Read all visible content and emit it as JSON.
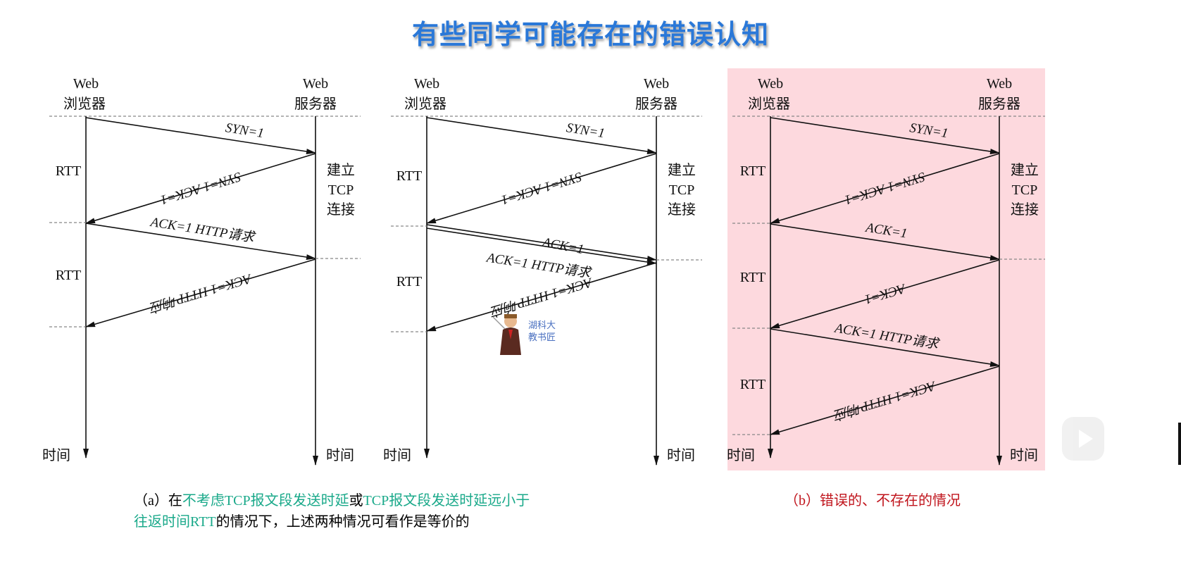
{
  "title": "有些同学可能存在的错误认知",
  "client_label": [
    "Web",
    "浏览器"
  ],
  "server_label": [
    "Web",
    "服务器"
  ],
  "time_label": "时间",
  "rtt_label": "RTT",
  "tcp_setup_label": [
    "建立",
    "TCP",
    "连接"
  ],
  "messages": {
    "syn": "SYN=1",
    "syn_ack": "SYN=1   ACK=1",
    "ack": "ACK=1",
    "ack_http_req": "ACK=1   HTTP请求",
    "ack_http_resp": "ACK=1   HTTP响应"
  },
  "mascot_text": [
    "湖科大",
    "教书匠"
  ],
  "caption_a": {
    "p1": "（a）在",
    "p2": "不考虑TCP报文段发送时延",
    "p3": "或",
    "p4": "TCP报文段发送时延远小于",
    "p5": "往返时间RTT",
    "p6": "的情况下，上述两种情况可看作是等价的"
  },
  "caption_b": "（b）错误的、不存在的情况",
  "colors": {
    "title": "#2a78d8",
    "highlight": "#1aa98a",
    "wrong": "#c0141c",
    "wrong_bg": "#fdd9de"
  },
  "icons": {
    "play": "play-icon"
  }
}
